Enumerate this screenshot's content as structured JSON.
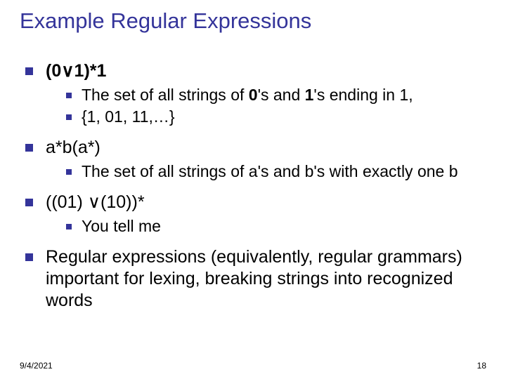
{
  "colors": {
    "title": "#34349a",
    "bullet": "#34349a",
    "text": "#000000",
    "background": "#ffffff"
  },
  "typography": {
    "title_fontsize": 31,
    "l1_fontsize": 25,
    "l2_fontsize": 23,
    "footer_fontsize": 12,
    "font_family": "Arial"
  },
  "title": "Example Regular Expressions",
  "items": [
    {
      "label_pre": "(0",
      "label_or": "∨",
      "label_post": "1)*1",
      "sub": [
        {
          "pre": "The set of all strings of ",
          "bold1": "0",
          "mid": "'s and ",
          "bold2": "1",
          "post": "'s ending in 1,"
        },
        {
          "plain": "{1, 01, 11,…}"
        }
      ]
    },
    {
      "label_plain": "a*b(a*)",
      "sub": [
        {
          "plain": "The set of all strings of a's and b's with exactly one b"
        }
      ]
    },
    {
      "label_pre": "((01) ",
      "label_or": "∨",
      "label_post": "(10))*",
      "sub": [
        {
          "plain": "You tell me"
        }
      ]
    },
    {
      "label_long": "Regular expressions (equivalently, regular grammars) important for lexing, breaking strings into recognized words"
    }
  ],
  "footer": {
    "date": "9/4/2021",
    "page": "18"
  }
}
